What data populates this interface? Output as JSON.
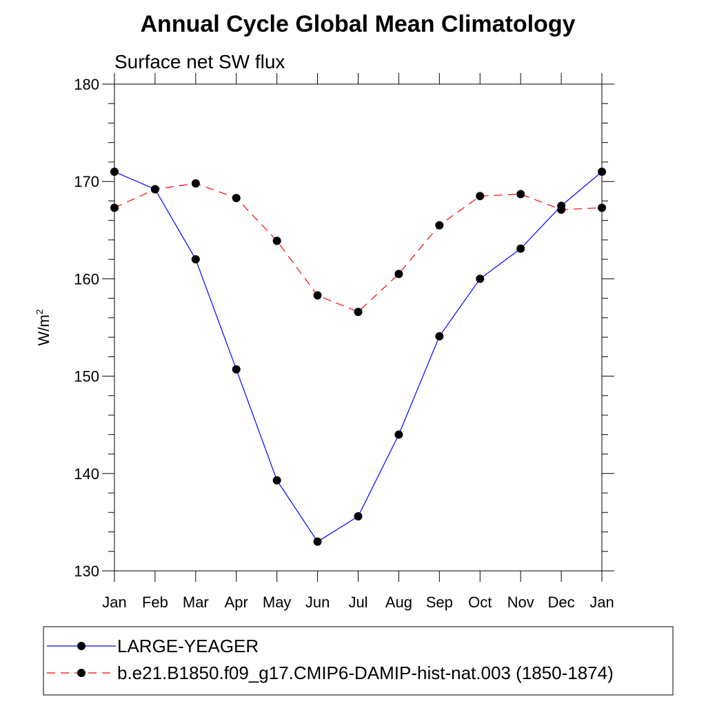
{
  "chart_data": {
    "type": "line",
    "title": "Annual Cycle Global Mean Climatology",
    "subtitle": "Surface net SW flux",
    "xlabel": "",
    "ylabel": "W/m",
    "ylabel_superscript": "2",
    "categories": [
      "Jan",
      "Feb",
      "Mar",
      "Apr",
      "May",
      "Jun",
      "Jul",
      "Aug",
      "Sep",
      "Oct",
      "Nov",
      "Dec",
      "Jan"
    ],
    "ylim": [
      130,
      180
    ],
    "yticks": [
      130,
      140,
      150,
      160,
      170,
      180
    ],
    "grid": false,
    "legend_position": "bottom",
    "series": [
      {
        "name": "LARGE-YEAGER",
        "color": "#0000ff",
        "dash": "solid",
        "marker": "filled-circle",
        "values": [
          171.0,
          169.2,
          162.0,
          150.7,
          139.3,
          133.0,
          135.6,
          144.0,
          154.1,
          160.0,
          163.1,
          167.5,
          171.0
        ]
      },
      {
        "name": "b.e21.B1850.f09_g17.CMIP6-DAMIP-hist-nat.003 (1850-1874)",
        "color": "#ff0000",
        "dash": "dashed",
        "marker": "filled-circle",
        "values": [
          167.3,
          169.2,
          169.8,
          168.3,
          163.9,
          158.3,
          156.6,
          160.5,
          165.5,
          168.5,
          168.7,
          167.1,
          167.3
        ]
      }
    ]
  }
}
